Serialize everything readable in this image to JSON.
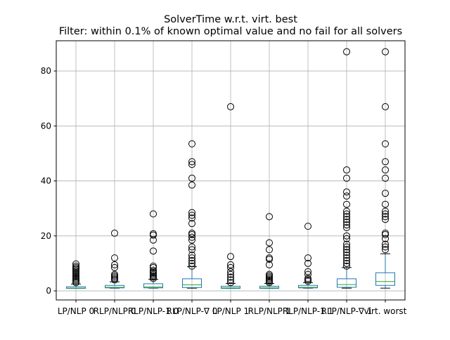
{
  "chart_data": {
    "type": "boxplot",
    "title": "SolverTime w.r.t. virt. best",
    "subtitle": "Filter: within 0.1% of known optimal value and no fail for all solvers",
    "xlabel": "",
    "ylabel": "",
    "ylim": [
      -3.3,
      91
    ],
    "yticks": [
      0,
      20,
      40,
      60,
      80
    ],
    "grid": true,
    "colors": {
      "box": "#1f77b4",
      "median": "#2ca02c",
      "whisker": "#1f77b4",
      "cap": "#000000",
      "grid": "#b0b0b0"
    },
    "categories": [
      "LP/NLP 0",
      "RLP/NLP 0",
      "RLP/NLP-1 0",
      "RLP/NLP-∇ 0",
      "LP/NLP 1",
      "RLP/NLP 1",
      "RLP/NLP-1 1",
      "RLP/NLP-∇ 1",
      "virt. worst"
    ],
    "boxes": [
      {
        "q1": 0.9,
        "median": 1.0,
        "q3": 1.5,
        "whislo": 0.9,
        "whishi": 2.5,
        "fliers": [
          3,
          3.5,
          4,
          4.5,
          5,
          5.5,
          6,
          6.5,
          7,
          7.5,
          8,
          8.5,
          9,
          9.8
        ]
      },
      {
        "q1": 1.1,
        "median": 1.3,
        "q3": 2.0,
        "whislo": 1.0,
        "whishi": 3.3,
        "fliers": [
          4,
          4.5,
          5,
          5.5,
          6,
          8.5,
          9.5,
          12,
          21
        ]
      },
      {
        "q1": 1.1,
        "median": 1.4,
        "q3": 2.6,
        "whislo": 1.0,
        "whishi": 4.2,
        "fliers": [
          4.5,
          5,
          5.5,
          6,
          6.5,
          7,
          7.5,
          8.5,
          9,
          14.5,
          18.5,
          20.3,
          20.8,
          28
        ]
      },
      {
        "q1": 1.2,
        "median": 2.2,
        "q3": 4.4,
        "whislo": 1.0,
        "whishi": 8.8,
        "fliers": [
          9,
          10,
          11,
          12,
          13,
          15,
          16,
          18.5,
          19.5,
          20.5,
          21,
          24.5,
          26.5,
          27.5,
          28.5,
          38.5,
          41,
          46,
          47,
          53.5
        ]
      },
      {
        "q1": 0.9,
        "median": 1.1,
        "q3": 1.7,
        "whislo": 0.9,
        "whishi": 2.7,
        "fliers": [
          3,
          4,
          5,
          6,
          7,
          8.5,
          9.5,
          12.5,
          67
        ]
      },
      {
        "q1": 0.9,
        "median": 1.1,
        "q3": 1.7,
        "whislo": 0.9,
        "whishi": 2.7,
        "fliers": [
          3,
          3.5,
          4,
          4.5,
          5,
          5.5,
          6,
          9.5,
          11.5,
          12,
          15,
          17.5,
          27
        ]
      },
      {
        "q1": 1.1,
        "median": 1.3,
        "q3": 2.0,
        "whislo": 1.0,
        "whishi": 3.0,
        "fliers": [
          3.5,
          4,
          4.5,
          6,
          7,
          10,
          12,
          23.5
        ]
      },
      {
        "q1": 1.3,
        "median": 2.3,
        "q3": 4.4,
        "whislo": 1.0,
        "whishi": 8.5,
        "fliers": [
          9,
          10,
          11,
          12,
          13,
          14,
          15,
          16,
          17,
          19,
          20,
          23,
          24,
          25,
          26,
          27,
          28,
          29,
          31.5,
          34.5,
          36,
          41,
          44,
          87
        ]
      },
      {
        "q1": 2.0,
        "median": 3.4,
        "q3": 6.6,
        "whislo": 1.0,
        "whishi": 13.5,
        "fliers": [
          15,
          16,
          17,
          19,
          20.5,
          21,
          26,
          27,
          28,
          29,
          31.5,
          35.5,
          41,
          44,
          47,
          53.5,
          67,
          87
        ]
      }
    ]
  }
}
